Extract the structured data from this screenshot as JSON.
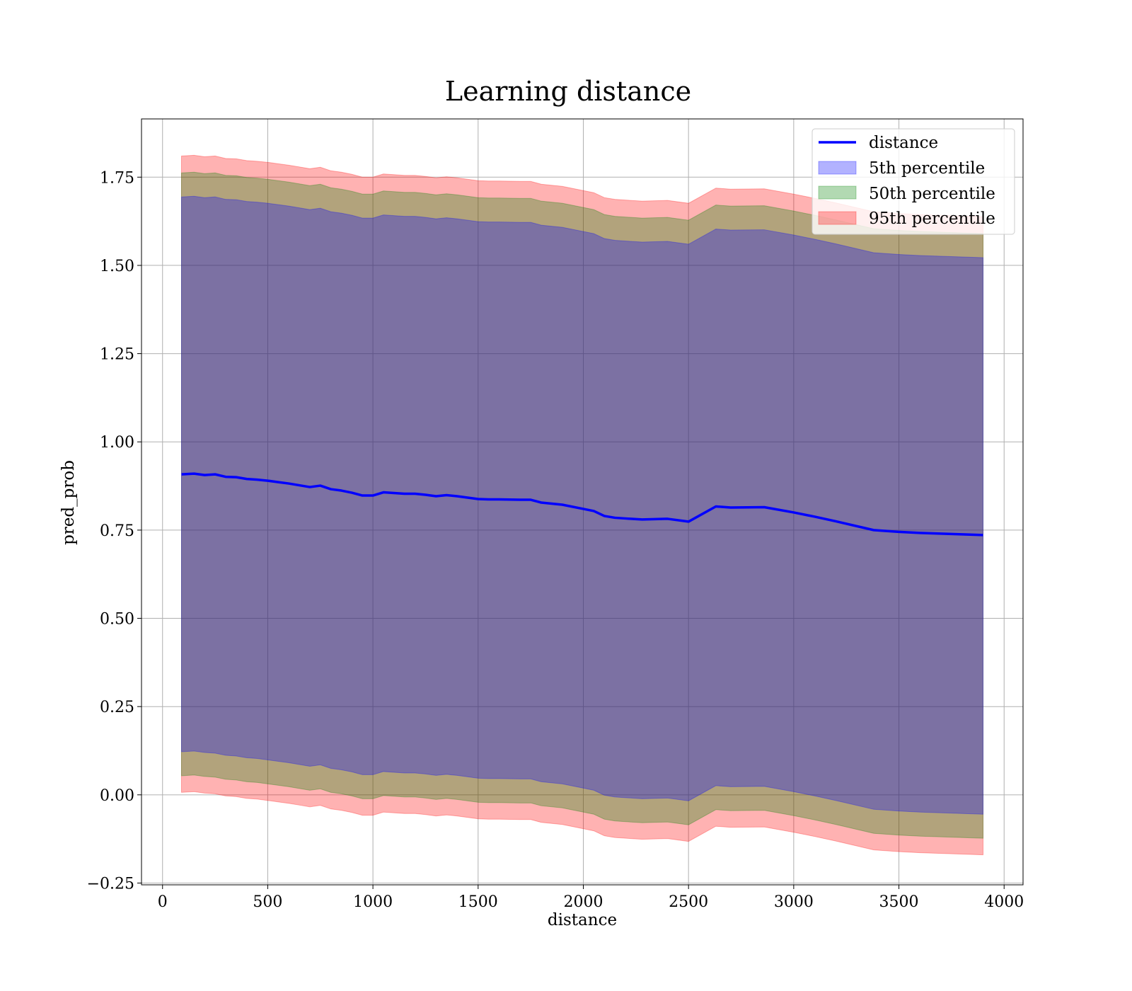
{
  "chart_data": {
    "type": "line",
    "title": "Learning distance",
    "xlabel": "distance",
    "ylabel": "pred_prob",
    "xlim": [
      -100,
      4090
    ],
    "ylim": [
      -0.255,
      1.915
    ],
    "xticks": [
      0,
      500,
      1000,
      1500,
      2000,
      2500,
      3000,
      3500,
      4000
    ],
    "xtick_labels": [
      "0",
      "500",
      "1000",
      "1500",
      "2000",
      "2500",
      "3000",
      "3500",
      "4000"
    ],
    "yticks": [
      -0.25,
      0.0,
      0.25,
      0.5,
      0.75,
      1.0,
      1.25,
      1.5,
      1.75
    ],
    "ytick_labels": [
      "−0.25",
      "0.00",
      "0.25",
      "0.50",
      "0.75",
      "1.00",
      "1.25",
      "1.50",
      "1.75"
    ],
    "grid": true,
    "legend_position": "top-right",
    "x": [
      90,
      150,
      200,
      250,
      300,
      350,
      400,
      450,
      500,
      550,
      600,
      650,
      700,
      750,
      800,
      850,
      900,
      950,
      1000,
      1050,
      1100,
      1150,
      1200,
      1250,
      1300,
      1350,
      1400,
      1500,
      1550,
      1600,
      1700,
      1750,
      1800,
      1900,
      2000,
      2050,
      2100,
      2150,
      2200,
      2280,
      2400,
      2500,
      2630,
      2700,
      2860,
      3000,
      3100,
      3200,
      3380,
      3500,
      3600,
      3900
    ],
    "series": [
      {
        "name": "distance",
        "kind": "line",
        "color": "#0000ff",
        "values": [
          0.908,
          0.91,
          0.906,
          0.908,
          0.901,
          0.9,
          0.895,
          0.893,
          0.89,
          0.886,
          0.882,
          0.877,
          0.872,
          0.876,
          0.866,
          0.862,
          0.856,
          0.848,
          0.848,
          0.857,
          0.855,
          0.853,
          0.853,
          0.85,
          0.846,
          0.849,
          0.846,
          0.838,
          0.837,
          0.837,
          0.836,
          0.836,
          0.828,
          0.822,
          0.81,
          0.804,
          0.79,
          0.785,
          0.783,
          0.78,
          0.782,
          0.774,
          0.817,
          0.814,
          0.815,
          0.8,
          0.788,
          0.775,
          0.75,
          0.745,
          0.742,
          0.736
        ]
      },
      {
        "name": "5th percentile",
        "kind": "band",
        "color": "#0000ff",
        "lower": [
          0.122,
          0.124,
          0.12,
          0.118,
          0.112,
          0.11,
          0.105,
          0.103,
          0.099,
          0.095,
          0.091,
          0.086,
          0.081,
          0.085,
          0.075,
          0.071,
          0.065,
          0.057,
          0.057,
          0.066,
          0.064,
          0.062,
          0.062,
          0.059,
          0.055,
          0.058,
          0.055,
          0.047,
          0.046,
          0.046,
          0.045,
          0.045,
          0.037,
          0.031,
          0.019,
          0.013,
          -0.001,
          -0.006,
          -0.008,
          -0.011,
          -0.009,
          -0.017,
          0.026,
          0.023,
          0.024,
          0.009,
          -0.003,
          -0.016,
          -0.041,
          -0.046,
          -0.049,
          -0.055
        ],
        "upper": [
          1.694,
          1.696,
          1.692,
          1.694,
          1.687,
          1.686,
          1.681,
          1.679,
          1.676,
          1.672,
          1.668,
          1.663,
          1.658,
          1.662,
          1.652,
          1.648,
          1.642,
          1.634,
          1.634,
          1.643,
          1.641,
          1.639,
          1.639,
          1.636,
          1.632,
          1.635,
          1.632,
          1.624,
          1.623,
          1.623,
          1.622,
          1.622,
          1.614,
          1.608,
          1.596,
          1.59,
          1.576,
          1.571,
          1.569,
          1.566,
          1.568,
          1.56,
          1.603,
          1.6,
          1.601,
          1.586,
          1.574,
          1.561,
          1.536,
          1.531,
          1.528,
          1.522
        ]
      },
      {
        "name": "50th percentile",
        "kind": "band",
        "color": "#008000",
        "lower": [
          0.054,
          0.056,
          0.052,
          0.05,
          0.044,
          0.042,
          0.037,
          0.035,
          0.031,
          0.027,
          0.023,
          0.018,
          0.013,
          0.017,
          0.007,
          0.003,
          -0.003,
          -0.011,
          -0.011,
          -0.002,
          -0.004,
          -0.006,
          -0.006,
          -0.009,
          -0.013,
          -0.01,
          -0.013,
          -0.021,
          -0.022,
          -0.022,
          -0.023,
          -0.023,
          -0.031,
          -0.037,
          -0.049,
          -0.055,
          -0.069,
          -0.074,
          -0.076,
          -0.079,
          -0.077,
          -0.085,
          -0.042,
          -0.045,
          -0.044,
          -0.059,
          -0.071,
          -0.084,
          -0.109,
          -0.114,
          -0.117,
          -0.123
        ],
        "upper": [
          1.762,
          1.764,
          1.76,
          1.762,
          1.755,
          1.754,
          1.749,
          1.747,
          1.744,
          1.74,
          1.736,
          1.731,
          1.726,
          1.73,
          1.72,
          1.716,
          1.71,
          1.702,
          1.702,
          1.711,
          1.709,
          1.707,
          1.707,
          1.704,
          1.7,
          1.703,
          1.7,
          1.692,
          1.691,
          1.691,
          1.69,
          1.69,
          1.682,
          1.676,
          1.664,
          1.658,
          1.644,
          1.639,
          1.637,
          1.634,
          1.636,
          1.628,
          1.671,
          1.668,
          1.669,
          1.654,
          1.642,
          1.629,
          1.604,
          1.599,
          1.596,
          1.59
        ]
      },
      {
        "name": "95th percentile",
        "kind": "band",
        "color": "#ff0000",
        "lower": [
          0.007,
          0.009,
          0.005,
          0.003,
          -0.003,
          -0.005,
          -0.01,
          -0.012,
          -0.016,
          -0.02,
          -0.024,
          -0.029,
          -0.034,
          -0.03,
          -0.04,
          -0.044,
          -0.05,
          -0.058,
          -0.058,
          -0.049,
          -0.051,
          -0.053,
          -0.053,
          -0.056,
          -0.06,
          -0.057,
          -0.06,
          -0.068,
          -0.069,
          -0.069,
          -0.07,
          -0.07,
          -0.078,
          -0.084,
          -0.096,
          -0.102,
          -0.116,
          -0.121,
          -0.123,
          -0.126,
          -0.124,
          -0.132,
          -0.089,
          -0.092,
          -0.091,
          -0.106,
          -0.118,
          -0.131,
          -0.156,
          -0.161,
          -0.164,
          -0.17
        ],
        "upper": [
          1.81,
          1.812,
          1.808,
          1.81,
          1.803,
          1.802,
          1.797,
          1.795,
          1.792,
          1.788,
          1.784,
          1.779,
          1.774,
          1.778,
          1.768,
          1.764,
          1.758,
          1.75,
          1.75,
          1.759,
          1.757,
          1.755,
          1.755,
          1.752,
          1.748,
          1.751,
          1.748,
          1.74,
          1.739,
          1.739,
          1.738,
          1.738,
          1.73,
          1.724,
          1.712,
          1.706,
          1.692,
          1.687,
          1.685,
          1.682,
          1.684,
          1.676,
          1.719,
          1.716,
          1.717,
          1.702,
          1.69,
          1.677,
          1.652,
          1.647,
          1.644,
          1.638
        ]
      }
    ]
  }
}
